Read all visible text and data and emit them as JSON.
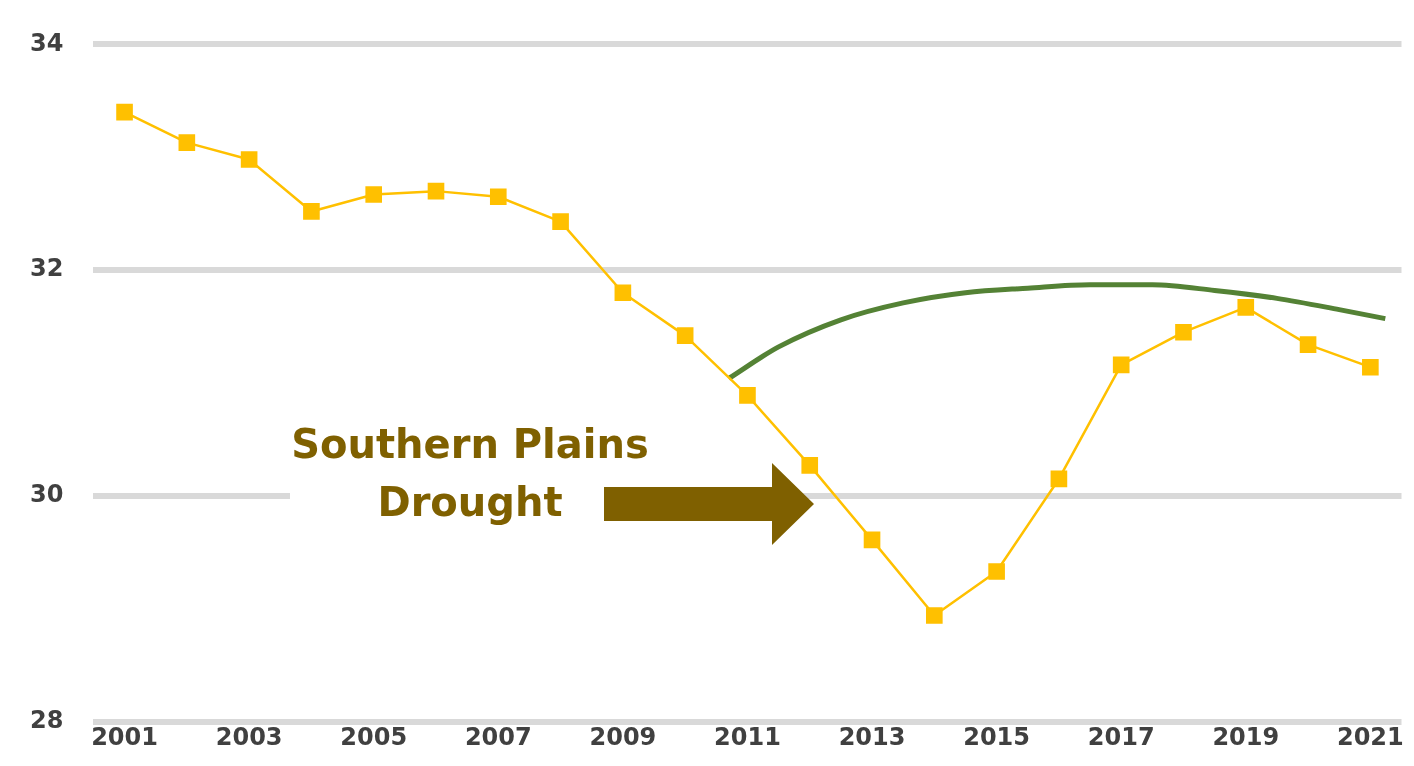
{
  "chart_data": {
    "type": "line",
    "x": [
      2001,
      2002,
      2003,
      2004,
      2005,
      2006,
      2007,
      2008,
      2009,
      2010,
      2011,
      2012,
      2013,
      2014,
      2015,
      2016,
      2017,
      2018,
      2019,
      2020,
      2021
    ],
    "series": [
      {
        "color": "#ffc000",
        "marker": "square",
        "values": [
          33.4,
          33.13,
          32.98,
          32.52,
          32.67,
          32.7,
          32.65,
          32.43,
          31.8,
          31.42,
          30.89,
          30.27,
          29.61,
          28.94,
          29.33,
          30.15,
          31.16,
          31.45,
          31.67,
          31.34,
          31.14
        ]
      },
      {
        "type": "line",
        "color": "#548235",
        "marker": "none",
        "x": [
          2010.7,
          2011.5,
          2012.5,
          2013.5,
          2014.5,
          2015.5,
          2016.5,
          2017.5,
          2018.5,
          2019.5,
          2020.5,
          2021.24
        ],
        "values": [
          31.04,
          31.32,
          31.56,
          31.71,
          31.8,
          31.84,
          31.87,
          31.87,
          31.82,
          31.75,
          31.65,
          31.57
        ]
      }
    ],
    "xlim": [
      2000.5,
      2021.5
    ],
    "xticks": [
      2001,
      2003,
      2005,
      2007,
      2009,
      2011,
      2013,
      2015,
      2017,
      2019,
      2021
    ],
    "ylim": [
      28,
      34
    ],
    "yticks": [
      28,
      30,
      32,
      34
    ],
    "grid": "y",
    "legend": false,
    "annotations": [
      "Southern Plains Drought"
    ]
  }
}
